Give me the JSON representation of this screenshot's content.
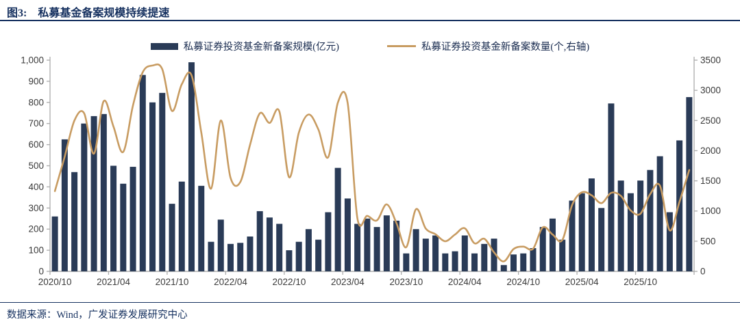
{
  "header": {
    "figure_label": "图3:",
    "title": "私募基金备案规模持续提速"
  },
  "footer": {
    "source": "数据来源：Wind，广发证券发展研究中心"
  },
  "colors": {
    "bar": "#2a3b57",
    "line": "#c89c62",
    "navy_text": "#15305f",
    "legend_text": "#1a2c50",
    "axis": "#ababab",
    "tick_text": "#3a3a3a"
  },
  "chart_data": {
    "type": "bar+line combo (dual axis)",
    "title": "私募基金备案规模持续提速",
    "legend_position": "top-center",
    "grid": "off",
    "categories": [
      "2020/10",
      "2020/11",
      "2020/12",
      "2021/01",
      "2021/02",
      "2021/03",
      "2021/04",
      "2021/05",
      "2021/06",
      "2021/07",
      "2021/08",
      "2021/09",
      "2021/10",
      "2021/11",
      "2021/12",
      "2022/01",
      "2022/02",
      "2022/03",
      "2022/04",
      "2022/05",
      "2022/06",
      "2022/07",
      "2022/08",
      "2022/09",
      "2022/10",
      "2022/11",
      "2022/12",
      "2023/01",
      "2023/02",
      "2023/03",
      "2023/04",
      "2023/05",
      "2023/06",
      "2023/07",
      "2023/08",
      "2023/09",
      "2023/10",
      "2023/11",
      "2023/12",
      "2024/01",
      "2024/02",
      "2024/03",
      "2024/04",
      "2024/05",
      "2024/06",
      "2024/07",
      "2024/08",
      "2024/09",
      "2024/10",
      "2024/11",
      "2024/12",
      "2025/01",
      "2025/02",
      "2025/03",
      "2025/04",
      "2025/05",
      "2025/06",
      "2025/07",
      "2025/08",
      "2025/09",
      "2025/10",
      "2025/11",
      "2025/12",
      "2026/01",
      "2026/02",
      "2026/03"
    ],
    "series": [
      {
        "name": "私募证券投资基金新备案规模(亿元)",
        "type": "bar",
        "axis": "left",
        "values": [
          260,
          625,
          470,
          700,
          735,
          745,
          500,
          415,
          495,
          930,
          800,
          845,
          320,
          425,
          990,
          405,
          140,
          245,
          130,
          135,
          165,
          285,
          255,
          225,
          100,
          140,
          200,
          150,
          280,
          490,
          345,
          225,
          250,
          210,
          265,
          240,
          85,
          200,
          155,
          170,
          85,
          95,
          170,
          85,
          130,
          155,
          30,
          80,
          85,
          110,
          210,
          250,
          150,
          335,
          370,
          440,
          300,
          795,
          430,
          370,
          430,
          480,
          545,
          280,
          620,
          825
        ]
      },
      {
        "name": "私募证券投资基金新备案数量(个,右轴)",
        "type": "line",
        "axis": "right",
        "values": [
          1330,
          1900,
          2500,
          2620,
          1950,
          2820,
          2400,
          1980,
          2750,
          3300,
          3410,
          3350,
          2660,
          3100,
          3250,
          2300,
          1370,
          2500,
          1550,
          1480,
          2100,
          2620,
          2460,
          2650,
          1560,
          2300,
          2600,
          2350,
          1890,
          2800,
          2790,
          880,
          920,
          845,
          1110,
          800,
          400,
          1030,
          710,
          615,
          500,
          610,
          715,
          465,
          540,
          315,
          165,
          370,
          410,
          375,
          730,
          610,
          520,
          1100,
          1310,
          1260,
          1130,
          1300,
          1250,
          1010,
          955,
          1280,
          1420,
          680,
          1150,
          1680
        ]
      }
    ],
    "left_axis": {
      "min": 0,
      "max": 1000,
      "step": 100,
      "tick_labels": [
        "0",
        "100",
        "200",
        "300",
        "400",
        "500",
        "600",
        "700",
        "800",
        "900",
        "1,000"
      ]
    },
    "right_axis": {
      "min": 0,
      "max": 3500,
      "step": 500,
      "tick_labels": [
        "0",
        "500",
        "1000",
        "1500",
        "2000",
        "2500",
        "3000",
        "3500"
      ]
    },
    "x_axis": {
      "tick_every_months": 6,
      "labels": [
        "2020/10",
        "2021/04",
        "2021/10",
        "2022/04",
        "2022/10",
        "2023/04",
        "2023/10",
        "2024/04",
        "2024/10",
        "2025/04",
        "2025/10"
      ],
      "label_month_indices": [
        0,
        6,
        12,
        18,
        24,
        30,
        36,
        42,
        48,
        54,
        60
      ]
    }
  }
}
